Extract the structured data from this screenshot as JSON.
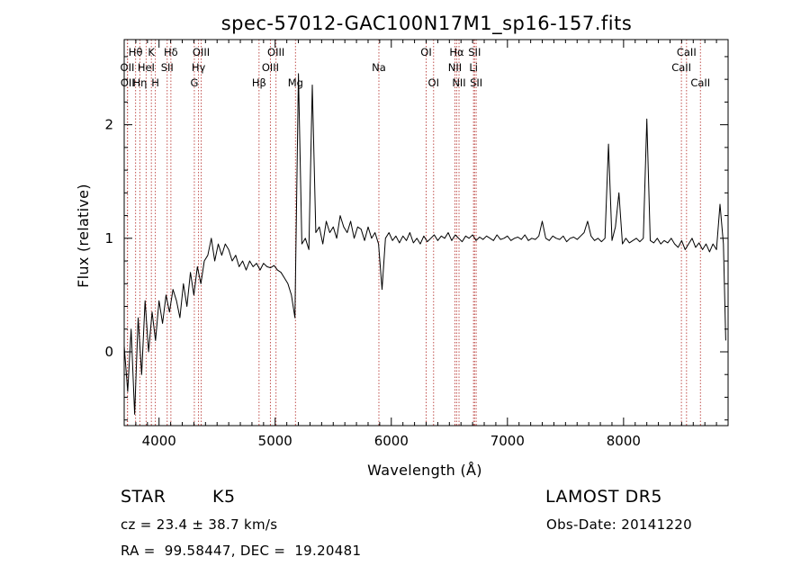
{
  "chart_data": {
    "type": "line",
    "title": "spec-57012-GAC100N17M1_sp16-157.fits",
    "xlabel": "Wavelength (Å)",
    "ylabel": "Flux (relative)",
    "xlim": [
      3700,
      8900
    ],
    "ylim": [
      -0.65,
      2.75
    ],
    "xticks": [
      4000,
      5000,
      6000,
      7000,
      8000
    ],
    "yticks": [
      0,
      1,
      2
    ],
    "grid": false,
    "line_color": "#000000",
    "marker_color": "#c0504d",
    "series": [
      {
        "x": [
          3700,
          3730,
          3760,
          3790,
          3820,
          3850,
          3880,
          3910,
          3940,
          3970,
          4000,
          4030,
          4060,
          4090,
          4120,
          4150,
          4180,
          4210,
          4240,
          4270,
          4300,
          4330,
          4360,
          4390,
          4420,
          4450,
          4480,
          4510,
          4540,
          4570,
          4600,
          4630,
          4660,
          4690,
          4720,
          4750,
          4780,
          4810,
          4840,
          4870,
          4900,
          4930,
          4960,
          4990,
          5020,
          5050,
          5080,
          5110,
          5140,
          5170,
          5200,
          5230,
          5260,
          5290,
          5320,
          5350,
          5380,
          5410,
          5440,
          5470,
          5500,
          5530,
          5560,
          5590,
          5620,
          5650,
          5680,
          5710,
          5740,
          5770,
          5800,
          5830,
          5860,
          5890,
          5920,
          5950,
          5980,
          6010,
          6040,
          6070,
          6100,
          6130,
          6160,
          6190,
          6220,
          6250,
          6280,
          6310,
          6340,
          6370,
          6400,
          6430,
          6460,
          6490,
          6520,
          6550,
          6580,
          6610,
          6640,
          6670,
          6700,
          6730,
          6760,
          6790,
          6820,
          6850,
          6880,
          6910,
          6940,
          6970,
          7000,
          7030,
          7060,
          7090,
          7120,
          7150,
          7180,
          7210,
          7240,
          7270,
          7300,
          7330,
          7360,
          7390,
          7420,
          7450,
          7480,
          7510,
          7540,
          7570,
          7600,
          7630,
          7660,
          7690,
          7720,
          7750,
          7780,
          7810,
          7840,
          7870,
          7900,
          7930,
          7960,
          7990,
          8020,
          8050,
          8080,
          8110,
          8140,
          8170,
          8200,
          8230,
          8260,
          8290,
          8320,
          8350,
          8380,
          8410,
          8440,
          8470,
          8500,
          8530,
          8560,
          8590,
          8620,
          8650,
          8680,
          8710,
          8740,
          8770,
          8800,
          8830,
          8860,
          8880
        ],
        "y": [
          0.05,
          -0.35,
          0.2,
          -0.55,
          0.3,
          -0.2,
          0.45,
          0.0,
          0.35,
          0.1,
          0.45,
          0.25,
          0.5,
          0.35,
          0.55,
          0.45,
          0.3,
          0.6,
          0.4,
          0.7,
          0.5,
          0.75,
          0.6,
          0.8,
          0.85,
          1.0,
          0.8,
          0.95,
          0.85,
          0.95,
          0.9,
          0.8,
          0.85,
          0.75,
          0.8,
          0.72,
          0.8,
          0.75,
          0.78,
          0.72,
          0.78,
          0.75,
          0.74,
          0.76,
          0.72,
          0.7,
          0.65,
          0.6,
          0.5,
          0.3,
          2.45,
          0.95,
          1.0,
          0.9,
          2.35,
          1.05,
          1.1,
          0.95,
          1.15,
          1.05,
          1.1,
          1.0,
          1.2,
          1.1,
          1.05,
          1.15,
          1.0,
          1.1,
          1.08,
          0.98,
          1.1,
          1.0,
          1.05,
          0.95,
          0.55,
          1.0,
          1.05,
          0.98,
          1.02,
          0.96,
          1.02,
          0.98,
          1.05,
          0.96,
          1.0,
          0.95,
          1.02,
          0.97,
          1.0,
          1.03,
          0.98,
          1.02,
          1.0,
          1.05,
          0.98,
          1.03,
          1.0,
          0.97,
          1.02,
          1.0,
          1.03,
          0.98,
          1.01,
          0.99,
          1.02,
          1.0,
          0.98,
          1.03,
          0.99,
          1.0,
          1.02,
          0.98,
          1.0,
          1.01,
          0.99,
          1.03,
          0.98,
          1.0,
          0.99,
          1.02,
          1.15,
          1.0,
          0.98,
          1.02,
          1.0,
          0.99,
          1.02,
          0.97,
          1.0,
          1.01,
          0.99,
          1.02,
          1.05,
          1.15,
          1.02,
          0.98,
          1.0,
          0.97,
          1.0,
          1.83,
          0.98,
          1.1,
          1.4,
          0.95,
          1.0,
          0.96,
          0.98,
          1.0,
          0.97,
          1.0,
          2.05,
          0.98,
          0.96,
          1.0,
          0.95,
          0.98,
          0.96,
          1.0,
          0.95,
          0.92,
          0.98,
          0.9,
          0.95,
          1.0,
          0.92,
          0.96,
          0.9,
          0.95,
          0.88,
          0.95,
          0.9,
          1.3,
          0.95,
          0.1
        ]
      }
    ],
    "line_markers": [
      {
        "label": "Hθ",
        "wl": 3798,
        "row": 0
      },
      {
        "label": "K",
        "wl": 3934,
        "row": 0
      },
      {
        "label": "Hδ",
        "wl": 4102,
        "row": 0
      },
      {
        "label": "OIII",
        "wl": 4363,
        "row": 0
      },
      {
        "label": "OIII",
        "wl": 5007,
        "row": 0
      },
      {
        "label": "OI",
        "wl": 6300,
        "row": 0
      },
      {
        "label": "Hα",
        "wl": 6563,
        "row": 0
      },
      {
        "label": "SII",
        "wl": 6717,
        "row": 0
      },
      {
        "label": "CaII",
        "wl": 8542,
        "row": 0
      },
      {
        "label": "OII",
        "wl": 3727,
        "row": 1
      },
      {
        "label": "HeI",
        "wl": 3889,
        "row": 1
      },
      {
        "label": "SII",
        "wl": 4070,
        "row": 1
      },
      {
        "label": "Hγ",
        "wl": 4340,
        "row": 1
      },
      {
        "label": "OIII",
        "wl": 4959,
        "row": 1
      },
      {
        "label": "Na",
        "wl": 5893,
        "row": 1
      },
      {
        "label": "NII",
        "wl": 6548,
        "row": 1
      },
      {
        "label": "Li",
        "wl": 6708,
        "row": 1
      },
      {
        "label": "CaII",
        "wl": 8498,
        "row": 1
      },
      {
        "label": "OII",
        "wl": 3729,
        "row": 2
      },
      {
        "label": "Hη",
        "wl": 3835,
        "row": 2
      },
      {
        "label": "H",
        "wl": 3968,
        "row": 2
      },
      {
        "label": "G",
        "wl": 4304,
        "row": 2
      },
      {
        "label": "Hβ",
        "wl": 4861,
        "row": 2
      },
      {
        "label": "Mg",
        "wl": 5175,
        "row": 2
      },
      {
        "label": "OI",
        "wl": 6364,
        "row": 2
      },
      {
        "label": "NII",
        "wl": 6583,
        "row": 2
      },
      {
        "label": "SII",
        "wl": 6731,
        "row": 2
      },
      {
        "label": "CaII",
        "wl": 8662,
        "row": 2
      }
    ]
  },
  "info": {
    "class": "STAR",
    "subclass": "K5",
    "cz": "cz = 23.4 ± 38.7 km/s",
    "coords": "RA =  99.58447, DEC =  19.20481",
    "survey": "LAMOST DR5",
    "obsdate": "Obs-Date: 20141220"
  }
}
